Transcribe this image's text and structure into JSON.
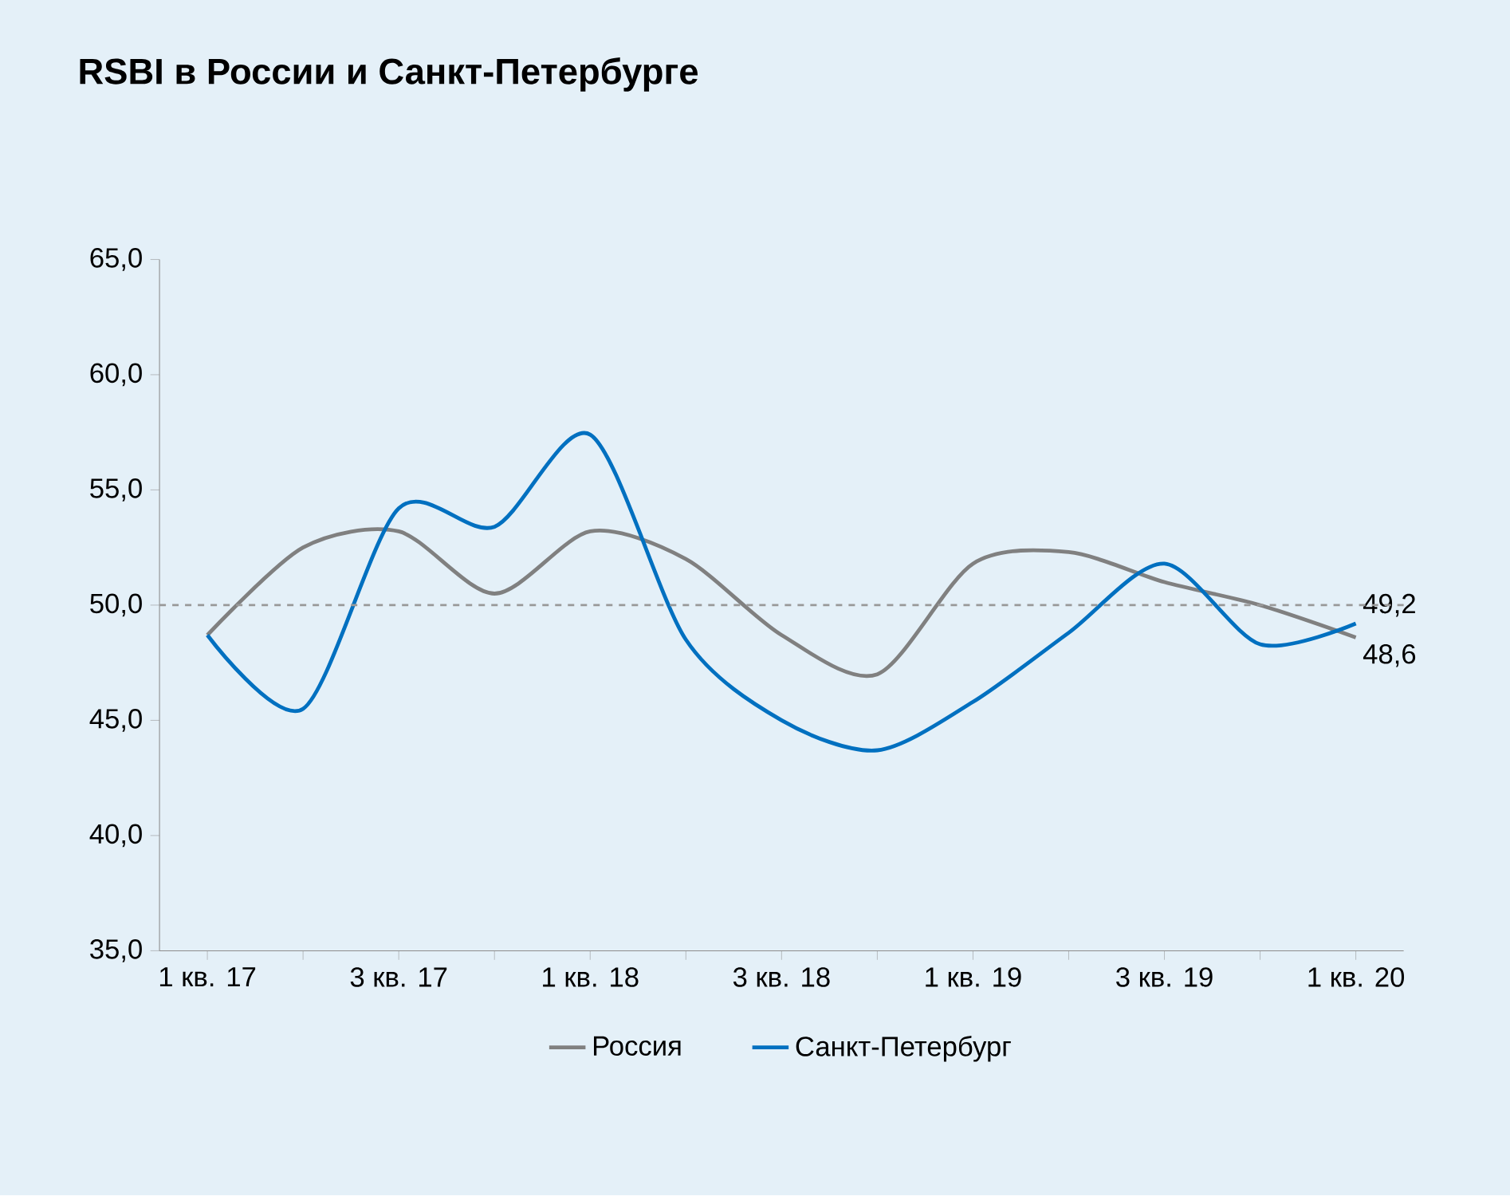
{
  "chart_data": {
    "type": "line",
    "title": "RSBI в России и Санкт-Петербурге",
    "categories": [
      "1 кв. 17",
      null,
      "3 кв. 17",
      null,
      "1 кв. 18",
      null,
      "3 кв. 18",
      null,
      "1 кв. 19",
      null,
      "3 кв. 19",
      null,
      "1 кв. 20"
    ],
    "series": [
      {
        "name": "Россия",
        "color": "#808080",
        "values": [
          48.7,
          52.5,
          53.2,
          50.5,
          53.2,
          52.0,
          48.7,
          47.0,
          51.8,
          52.3,
          51.0,
          50.0,
          48.6
        ],
        "value_labels": [
          null,
          null,
          null,
          null,
          null,
          null,
          null,
          null,
          null,
          null,
          null,
          null,
          "48,6"
        ]
      },
      {
        "name": "Санкт-Петербург",
        "color": "#0070c0",
        "values": [
          48.7,
          45.5,
          54.2,
          53.4,
          57.4,
          48.5,
          45.0,
          43.7,
          45.8,
          48.8,
          51.8,
          48.3,
          49.2
        ],
        "value_labels": [
          null,
          null,
          null,
          null,
          null,
          null,
          null,
          null,
          null,
          null,
          null,
          null,
          "49,2"
        ]
      }
    ],
    "ylim": [
      35,
      65
    ],
    "yticks": [
      {
        "value": 35,
        "label": "35,0"
      },
      {
        "value": 40,
        "label": "40,0"
      },
      {
        "value": 45,
        "label": "45,0"
      },
      {
        "value": 50,
        "label": "50,0"
      },
      {
        "value": 55,
        "label": "55,0"
      },
      {
        "value": 60,
        "label": "60,0"
      },
      {
        "value": 65,
        "label": "65,0"
      }
    ],
    "ref_lines": [
      {
        "axis": "y",
        "value": 50,
        "color": "#999999",
        "line_style": "dashed"
      }
    ],
    "legend": "bottom",
    "grid": false,
    "marker": "none",
    "line_style": "solid"
  }
}
